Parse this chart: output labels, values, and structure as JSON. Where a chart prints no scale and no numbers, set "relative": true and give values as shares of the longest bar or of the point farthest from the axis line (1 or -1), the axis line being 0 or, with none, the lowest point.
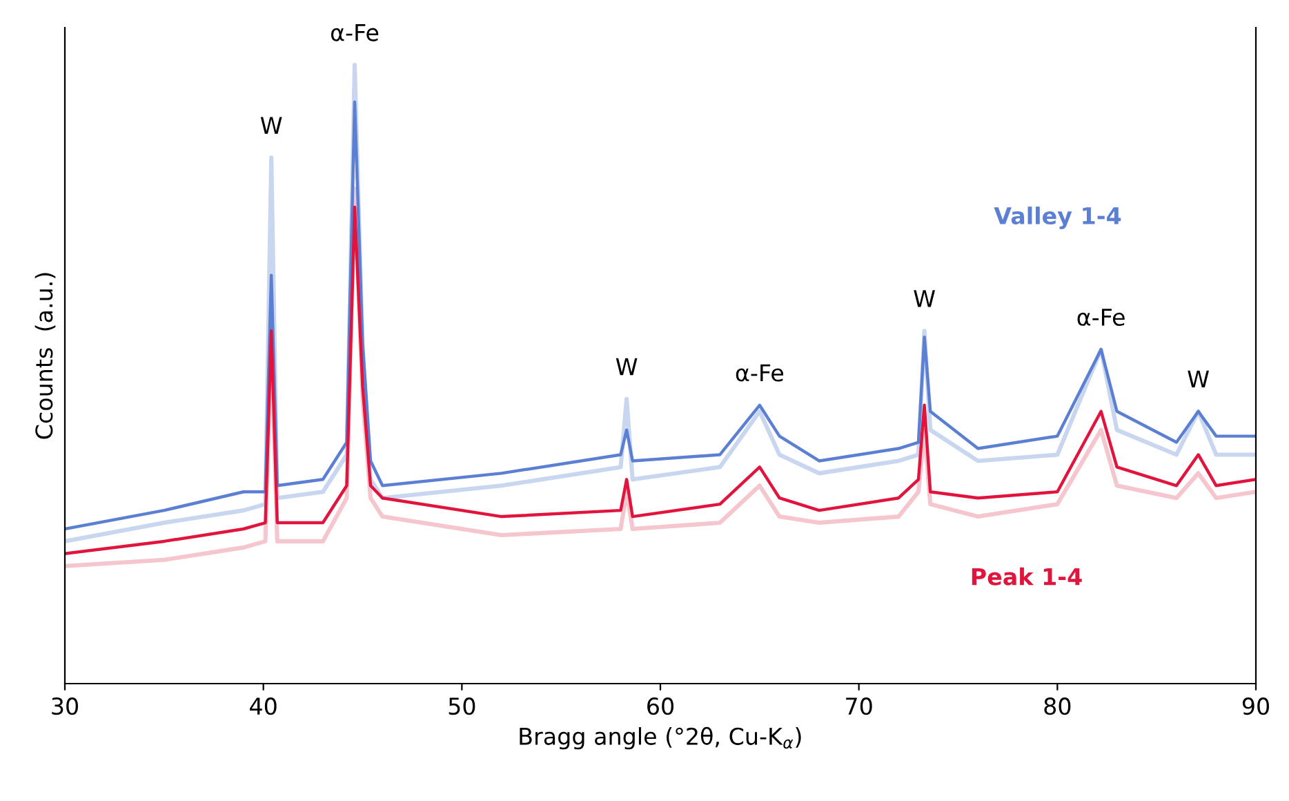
{
  "chart_data": {
    "type": "line",
    "relative": true,
    "xlabel": "Bragg angle (°2θ, Cu-K$_{α}$)",
    "ylabel": "Ccounts  (a.u.)",
    "xlim": [
      30,
      90
    ],
    "xticks": [
      30,
      40,
      50,
      60,
      70,
      80,
      90
    ],
    "x": [
      30,
      35,
      39,
      40.1,
      40.4,
      40.7,
      43,
      44.2,
      44.6,
      45.0,
      45.4,
      46,
      52,
      58,
      58.3,
      58.6,
      63,
      65,
      66,
      68,
      72,
      73,
      73.3,
      73.6,
      76,
      80,
      82.2,
      83,
      86,
      87.1,
      88,
      90
    ],
    "series": [
      {
        "color": "#c9d6f0",
        "values": [
          0.23,
          0.26,
          0.28,
          0.29,
          0.85,
          0.3,
          0.31,
          0.37,
          1.0,
          0.54,
          0.33,
          0.3,
          0.32,
          0.35,
          0.46,
          0.33,
          0.35,
          0.44,
          0.37,
          0.34,
          0.36,
          0.37,
          0.57,
          0.41,
          0.36,
          0.37,
          0.54,
          0.41,
          0.37,
          0.44,
          0.37,
          0.37
        ]
      },
      {
        "color": "#f5c6ce",
        "values": [
          0.19,
          0.2,
          0.22,
          0.23,
          0.55,
          0.23,
          0.23,
          0.3,
          0.8,
          0.46,
          0.3,
          0.27,
          0.24,
          0.25,
          0.31,
          0.25,
          0.26,
          0.32,
          0.27,
          0.26,
          0.27,
          0.31,
          0.41,
          0.29,
          0.27,
          0.29,
          0.41,
          0.32,
          0.3,
          0.34,
          0.3,
          0.31
        ]
      },
      {
        "name": "Valley 1-4",
        "color": "#5b7fd3",
        "values": [
          0.25,
          0.28,
          0.31,
          0.31,
          0.66,
          0.32,
          0.33,
          0.39,
          0.94,
          0.55,
          0.36,
          0.32,
          0.34,
          0.37,
          0.41,
          0.36,
          0.37,
          0.45,
          0.4,
          0.36,
          0.38,
          0.39,
          0.56,
          0.44,
          0.38,
          0.4,
          0.54,
          0.44,
          0.39,
          0.44,
          0.4,
          0.4
        ]
      },
      {
        "name": "Peak 1-4",
        "color": "#e0143c",
        "values": [
          0.21,
          0.23,
          0.25,
          0.26,
          0.57,
          0.26,
          0.26,
          0.32,
          0.77,
          0.48,
          0.32,
          0.3,
          0.27,
          0.28,
          0.33,
          0.27,
          0.29,
          0.35,
          0.3,
          0.28,
          0.3,
          0.33,
          0.45,
          0.31,
          0.3,
          0.31,
          0.44,
          0.35,
          0.32,
          0.37,
          0.32,
          0.33
        ]
      }
    ],
    "annotations": [
      {
        "text": "W",
        "x": 40.4,
        "y": 0.85
      },
      {
        "text": "α-Fe",
        "x": 44.6,
        "y": 1.0
      },
      {
        "text": "W",
        "x": 58.3,
        "y": 0.46
      },
      {
        "text": "α-Fe",
        "x": 65,
        "y": 0.45
      },
      {
        "text": "W",
        "x": 73.3,
        "y": 0.57
      },
      {
        "text": "α-Fe",
        "x": 82.2,
        "y": 0.54
      },
      {
        "text": "W",
        "x": 87.1,
        "y": 0.44
      }
    ]
  }
}
